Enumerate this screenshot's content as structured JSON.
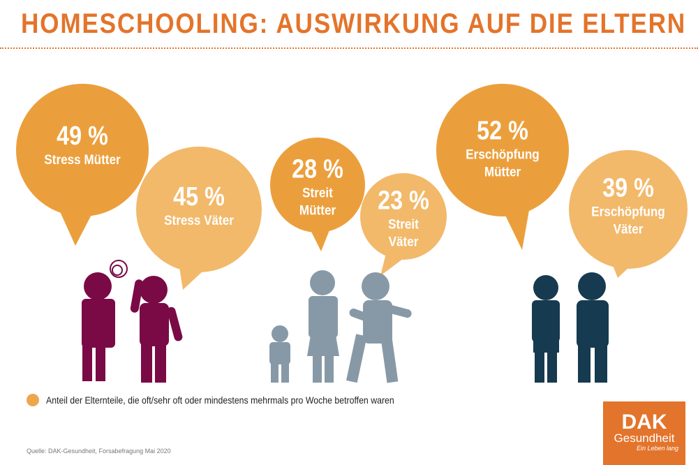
{
  "title": "HOMESCHOOLING: AUSWIRKUNG AUF DIE ELTERN",
  "colors": {
    "title": "#e3742b",
    "bubble_mothers": "#eb9f3c",
    "bubble_fathers": "#f2b96a",
    "stress_figures": "#7a0a45",
    "streit_figures": "#8799a7",
    "erschoepfung_figures": "#163a50"
  },
  "bubbles": [
    {
      "pct": "49 %",
      "label": "Stress Mütter",
      "value": 49
    },
    {
      "pct": "45 %",
      "label": "Stress Väter",
      "value": 45
    },
    {
      "pct": "28 %",
      "label": "Streit Mütter",
      "value": 28
    },
    {
      "pct": "23 %",
      "label": "Streit Väter",
      "value": 23
    },
    {
      "pct": "52 %",
      "label": "Erschöpfung Mütter",
      "value": 52
    },
    {
      "pct": "39 %",
      "label": "Erschöpfung Väter",
      "value": 39
    }
  ],
  "legend": "Anteil der Elternteile, die oft/sehr oft oder mindestens mehrmals pro Woche betroffen waren",
  "source": "Quelle: DAK-Gesundheit, Forsabefragung Mai 2020",
  "logo": {
    "brand": "DAK",
    "name": "Gesundheit",
    "slogan": "Ein Leben lang"
  }
}
